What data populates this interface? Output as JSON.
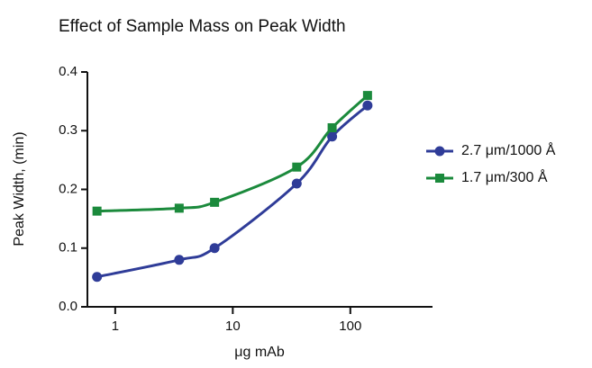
{
  "chart_data": {
    "type": "line",
    "title": "Effect of Sample Mass on Peak Width",
    "x_label": "μg mAb",
    "y_label": "Peak Width, (min)",
    "x": [
      0.7,
      3.5,
      7,
      35,
      70,
      140
    ],
    "series": [
      {
        "name": "2.7 μm/1000 Å",
        "color": "#2f3c98",
        "marker": "circle",
        "values": [
          0.051,
          0.08,
          0.1,
          0.21,
          0.29,
          0.343
        ]
      },
      {
        "name": "1.7 μm/300 Å",
        "color": "#1b8a3c",
        "marker": "square",
        "values": [
          0.163,
          0.168,
          0.178,
          0.238,
          0.305,
          0.36
        ]
      }
    ],
    "xscale": "log",
    "xlim": [
      0.58,
      500
    ],
    "xticks": [
      1,
      10,
      100
    ],
    "ylim": [
      0,
      0.4
    ],
    "yticks": [
      {
        "value": 0,
        "label": "0.0"
      },
      0.1,
      0.2,
      0.3,
      0.4
    ],
    "legend": "right"
  }
}
